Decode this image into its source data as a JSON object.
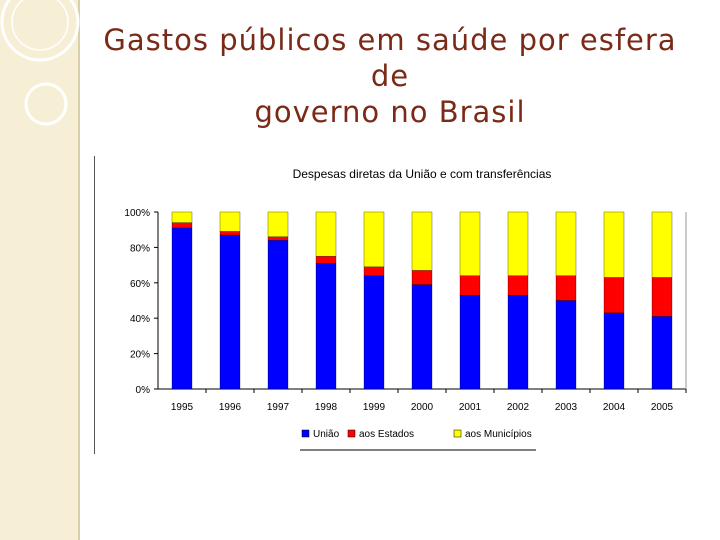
{
  "slide": {
    "title_line1": "Gastos públicos em saúde por esfera de",
    "title_line2": "governo no Brasil"
  },
  "colors": {
    "uniao": "#0000ff",
    "estados": "#ff0000",
    "municipios": "#ffff00",
    "title": "#7a2a17",
    "band": "#f6efd6"
  },
  "chart_data": {
    "type": "bar",
    "stacked": true,
    "title": "Despesas diretas da União e com transferências",
    "xlabel": "",
    "ylabel": "",
    "ylim": [
      0,
      100
    ],
    "y_ticks": [
      "0%",
      "20%",
      "40%",
      "60%",
      "80%",
      "100%"
    ],
    "categories": [
      "1995",
      "1996",
      "1997",
      "1998",
      "1999",
      "2000",
      "2001",
      "2002",
      "2003",
      "2004",
      "2005"
    ],
    "series": [
      {
        "name": "União",
        "color": "#0000ff",
        "values": [
          91,
          87,
          84,
          71,
          64,
          59,
          53,
          53,
          50,
          43,
          41
        ]
      },
      {
        "name": "aos Estados",
        "color": "#ff0000",
        "values": [
          3,
          2,
          2,
          4,
          5,
          8,
          11,
          11,
          14,
          20,
          22
        ]
      },
      {
        "name": "aos Municípios",
        "color": "#ffff00",
        "values": [
          6,
          11,
          14,
          25,
          31,
          33,
          36,
          36,
          36,
          37,
          37
        ]
      }
    ],
    "legend": {
      "position": "bottom",
      "entries": [
        "União",
        "aos Estados",
        "aos Municípios"
      ]
    },
    "grid": false
  }
}
